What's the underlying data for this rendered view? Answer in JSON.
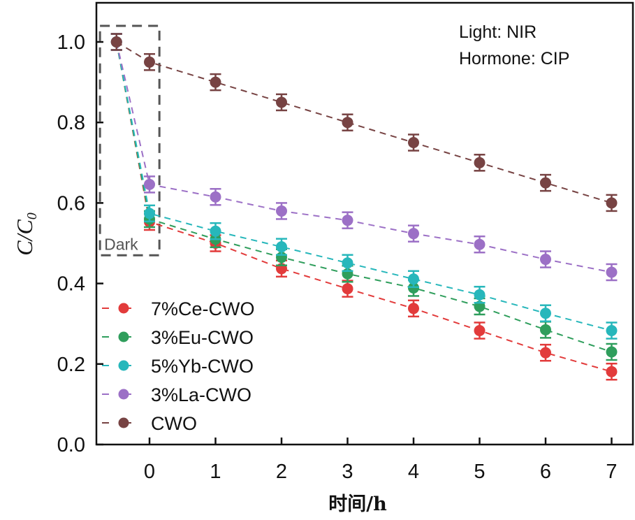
{
  "chart_data": {
    "type": "line",
    "title": "",
    "xlabel": "时间/h",
    "ylabel": "C/C",
    "ylabel_subscript": "0",
    "xlim": [
      -0.8,
      7.4
    ],
    "ylim": [
      0.0,
      1.05
    ],
    "x_ticks": [
      0,
      1,
      2,
      3,
      4,
      5,
      6,
      7
    ],
    "x_tick_labels": [
      "0",
      "1",
      "2",
      "3",
      "4",
      "5",
      "6",
      "7"
    ],
    "y_ticks": [
      0.0,
      0.2,
      0.4,
      0.6,
      0.8,
      1.0
    ],
    "y_tick_labels": [
      "0.0",
      "0.2",
      "0.4",
      "0.6",
      "0.8",
      "1.0"
    ],
    "grid": false,
    "legend_position": "bottom-left",
    "annotations": [
      "Light: NIR",
      "Hormone: CIP"
    ],
    "dark_region": {
      "label": "Dark",
      "x_range": [
        -0.75,
        0.15
      ],
      "y_range": [
        0.47,
        1.04
      ]
    },
    "x": [
      -0.5,
      0,
      1,
      2,
      3,
      4,
      5,
      6,
      7
    ],
    "error": 0.02,
    "series": [
      {
        "name": "7%Ce-CWO",
        "color": "#e23b3b",
        "values": [
          1.0,
          0.553,
          0.5,
          0.437,
          0.387,
          0.338,
          0.283,
          0.228,
          0.181
        ]
      },
      {
        "name": "3%Eu-CWO",
        "color": "#2f9e5c",
        "values": [
          1.0,
          0.56,
          0.51,
          0.465,
          0.424,
          0.389,
          0.343,
          0.285,
          0.23
        ]
      },
      {
        "name": "5%Yb-CWO",
        "color": "#27b7bb",
        "values": [
          1.0,
          0.574,
          0.53,
          0.491,
          0.451,
          0.411,
          0.372,
          0.326,
          0.283
        ]
      },
      {
        "name": "3%La-CWO",
        "color": "#9c70c6",
        "values": [
          1.0,
          0.646,
          0.615,
          0.58,
          0.557,
          0.524,
          0.497,
          0.46,
          0.428
        ]
      },
      {
        "name": "CWO",
        "color": "#774343",
        "values": [
          1.0,
          0.95,
          0.9,
          0.85,
          0.8,
          0.75,
          0.7,
          0.65,
          0.6
        ]
      }
    ]
  }
}
